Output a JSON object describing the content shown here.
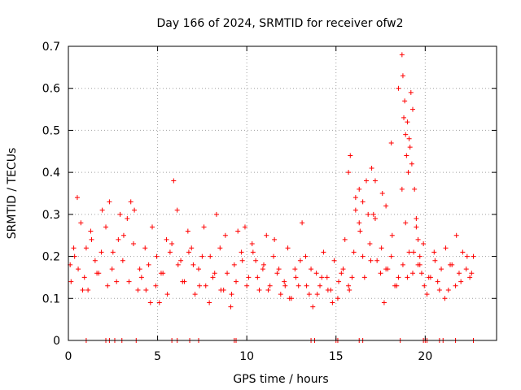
{
  "chart_data": {
    "type": "scatter",
    "title": "Day 166 of 2024, SRMTID for receiver ofw2",
    "xlabel": "GPS time / hours",
    "ylabel": "SRMTID / TECUs",
    "xlim": [
      0,
      24
    ],
    "ylim": [
      0,
      0.7
    ],
    "xticks": [
      0,
      5,
      10,
      15,
      20
    ],
    "xtick_labels": [
      "0",
      "5",
      "10",
      "15",
      "20"
    ],
    "yticks": [
      0,
      0.1,
      0.2,
      0.3,
      0.4,
      0.5,
      0.6,
      0.7
    ],
    "ytick_labels": [
      "0",
      "0.1",
      "0.2",
      "0.3",
      "0.4",
      "0.5",
      "0.6",
      "0.7"
    ],
    "grid": true,
    "marker": "+",
    "color": "#ff0000",
    "series": [
      {
        "name": "SRMTID",
        "x": [
          0.1,
          0.3,
          0.5,
          0.7,
          0.9,
          1.1,
          1.3,
          1.5,
          1.7,
          1.9,
          2.1,
          2.3,
          2.5,
          2.7,
          2.9,
          3.1,
          3.3,
          3.5,
          3.7,
          3.9,
          4.1,
          4.3,
          4.5,
          4.7,
          4.9,
          5.1,
          5.3,
          5.5,
          5.7,
          5.9,
          6.1,
          6.3,
          6.5,
          6.7,
          6.9,
          7.1,
          7.3,
          7.5,
          7.7,
          7.9,
          8.1,
          8.3,
          8.5,
          8.7,
          8.9,
          9.1,
          9.3,
          9.5,
          9.7,
          9.9,
          10.1,
          10.3,
          10.5,
          10.7,
          10.9,
          11.1,
          11.3,
          11.5,
          11.7,
          11.9,
          12.1,
          12.3,
          12.5,
          12.7,
          12.9,
          13.1,
          13.3,
          13.5,
          13.7,
          13.9,
          14.1,
          14.3,
          14.5,
          14.7,
          14.9,
          15.1,
          15.3,
          15.5,
          15.7,
          15.9,
          16.1,
          16.3,
          16.5,
          16.7,
          16.9,
          17.1,
          17.3,
          17.5,
          17.7,
          17.9,
          18.1,
          18.3,
          18.5,
          18.7,
          18.9,
          19.1,
          19.3,
          19.5,
          19.7,
          19.9,
          20.1,
          20.3,
          20.5,
          20.7,
          20.9,
          21.1,
          21.3,
          21.5,
          21.7,
          21.9,
          22.1,
          22.3,
          22.5,
          22.7,
          0.15,
          0.35,
          0.55,
          0.8,
          1.0,
          1.25,
          1.6,
          1.85,
          2.2,
          2.45,
          2.8,
          3.05,
          3.4,
          3.65,
          4.0,
          4.35,
          4.6,
          4.95,
          5.2,
          5.55,
          5.8,
          6.15,
          6.4,
          6.75,
          7.0,
          7.35,
          7.6,
          7.95,
          8.2,
          8.55,
          8.8,
          9.15,
          9.4,
          9.75,
          10.0,
          10.35,
          10.6,
          10.95,
          11.2,
          11.55,
          11.8,
          12.15,
          12.4,
          12.75,
          13.0,
          13.35,
          13.6,
          13.95,
          14.2,
          14.55,
          14.8,
          15.15,
          15.4,
          15.75,
          16.0,
          16.35,
          16.6,
          16.95,
          17.2,
          17.55,
          17.8,
          18.15,
          18.4,
          18.75,
          19.0,
          19.35,
          19.6,
          19.95,
          20.2,
          20.55,
          20.8,
          21.15,
          21.4,
          21.75,
          22.0,
          22.35,
          22.6,
          15.7,
          15.8,
          16.1,
          16.3,
          16.5,
          16.8,
          17.0,
          17.2,
          17.6,
          17.8,
          18.1,
          18.5,
          18.7,
          18.75,
          18.8,
          18.85,
          18.9,
          18.95,
          19.0,
          19.05,
          19.1,
          19.15,
          19.2,
          19.25,
          19.3,
          19.4,
          19.5,
          19.6,
          19.7,
          19.8,
          1.0,
          2.1,
          2.3,
          2.6,
          3.0,
          3.8,
          5.8,
          6.1,
          6.8,
          7.3,
          9.3,
          9.4,
          13.6,
          13.8,
          15.0,
          15.1,
          16.3,
          16.5,
          18.6,
          19.9,
          20.0,
          20.1,
          20.8,
          21.0,
          21.7,
          22.7
        ],
        "y": [
          0.18,
          0.22,
          0.34,
          0.28,
          0.15,
          0.12,
          0.24,
          0.19,
          0.16,
          0.31,
          0.27,
          0.33,
          0.21,
          0.14,
          0.3,
          0.25,
          0.29,
          0.33,
          0.31,
          0.12,
          0.15,
          0.22,
          0.18,
          0.27,
          0.13,
          0.09,
          0.16,
          0.24,
          0.21,
          0.38,
          0.31,
          0.19,
          0.14,
          0.26,
          0.22,
          0.11,
          0.17,
          0.2,
          0.13,
          0.09,
          0.15,
          0.3,
          0.22,
          0.12,
          0.16,
          0.08,
          0.18,
          0.26,
          0.21,
          0.27,
          0.15,
          0.23,
          0.19,
          0.12,
          0.17,
          0.25,
          0.13,
          0.2,
          0.16,
          0.11,
          0.14,
          0.22,
          0.1,
          0.17,
          0.13,
          0.28,
          0.2,
          0.11,
          0.08,
          0.16,
          0.13,
          0.21,
          0.15,
          0.12,
          0.19,
          0.1,
          0.16,
          0.24,
          0.13,
          0.15,
          0.34,
          0.28,
          0.2,
          0.38,
          0.23,
          0.3,
          0.19,
          0.16,
          0.09,
          0.17,
          0.2,
          0.13,
          0.15,
          0.36,
          0.28,
          0.21,
          0.16,
          0.27,
          0.18,
          0.23,
          0.11,
          0.15,
          0.21,
          0.14,
          0.17,
          0.1,
          0.12,
          0.18,
          0.13,
          0.16,
          0.21,
          0.17,
          0.15,
          0.2,
          0.14,
          0.2,
          0.17,
          0.12,
          0.22,
          0.26,
          0.16,
          0.21,
          0.13,
          0.17,
          0.24,
          0.19,
          0.14,
          0.23,
          0.17,
          0.12,
          0.09,
          0.2,
          0.16,
          0.11,
          0.23,
          0.18,
          0.14,
          0.21,
          0.18,
          0.13,
          0.27,
          0.2,
          0.16,
          0.12,
          0.25,
          0.11,
          0.14,
          0.19,
          0.13,
          0.21,
          0.15,
          0.18,
          0.12,
          0.24,
          0.17,
          0.13,
          0.1,
          0.15,
          0.19,
          0.13,
          0.17,
          0.11,
          0.15,
          0.12,
          0.09,
          0.14,
          0.17,
          0.12,
          0.21,
          0.26,
          0.15,
          0.19,
          0.29,
          0.22,
          0.17,
          0.25,
          0.13,
          0.18,
          0.15,
          0.21,
          0.18,
          0.13,
          0.15,
          0.19,
          0.12,
          0.22,
          0.18,
          0.25,
          0.14,
          0.2,
          0.16,
          0.4,
          0.44,
          0.31,
          0.36,
          0.33,
          0.3,
          0.41,
          0.38,
          0.35,
          0.32,
          0.47,
          0.6,
          0.68,
          0.63,
          0.53,
          0.57,
          0.49,
          0.44,
          0.52,
          0.4,
          0.48,
          0.46,
          0.59,
          0.42,
          0.55,
          0.36,
          0.29,
          0.24,
          0.2,
          0.16,
          0,
          0,
          0,
          0,
          0,
          0,
          0,
          0,
          0,
          0,
          0,
          0,
          0,
          0,
          0,
          0,
          0,
          0,
          0,
          0,
          0,
          0,
          0,
          0,
          0,
          0
        ]
      }
    ]
  }
}
